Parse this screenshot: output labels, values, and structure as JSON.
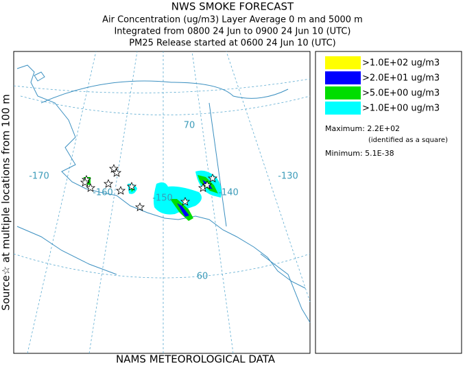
{
  "header": {
    "title": "NWS SMOKE FORECAST",
    "lines": [
      "Air Concentration (ug/m3) Layer Average    0 m and  5000 m",
      "Integrated from 0800 24 Jun to 0900 24 Jun 10 (UTC)",
      "PM25 Release started at 0600 24 Jun 10 (UTC)"
    ]
  },
  "side_label": "Source☆ at multiple locations from  100 m",
  "footer": "NAMS METEOROLOGICAL DATA",
  "map": {
    "labels": [
      "-170",
      "-160",
      "-150",
      "-140",
      "-130",
      "70",
      "60"
    ]
  },
  "legend": {
    "items": [
      {
        "label": ">1.0E+02 ug/m3",
        "color": "#ffff00"
      },
      {
        "label": ">2.0E+01 ug/m3",
        "color": "#0000ff"
      },
      {
        "label": ">5.0E+00 ug/m3",
        "color": "#00dd00"
      },
      {
        "label": ">1.0E+00 ug/m3",
        "color": "#00ffff"
      }
    ],
    "maximum": "Maximum: 2.2E+02",
    "max_note": "(identified as a square)",
    "minimum": "Minimum: 5.1E-38"
  }
}
